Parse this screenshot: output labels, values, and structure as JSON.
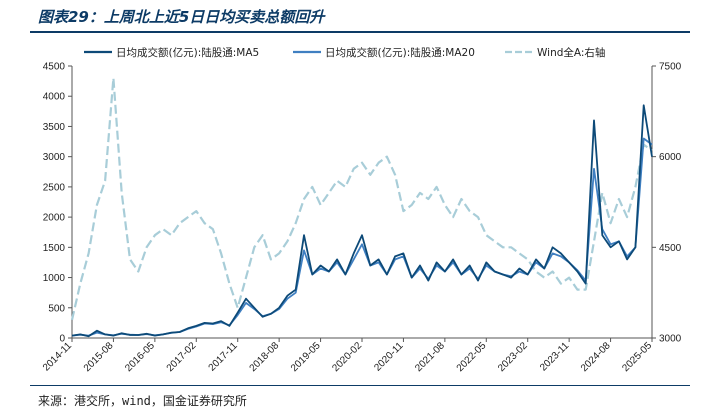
{
  "title": "图表29：上周北上近5日日均买卖总额回升",
  "source": "来源：港交所，wind，国金证券研究所",
  "chart_data": {
    "type": "line",
    "x_labels": [
      "2014-11",
      "2015-08",
      "2016-05",
      "2017-02",
      "2017-11",
      "2018-08",
      "2019-05",
      "2020-02",
      "2020-11",
      "2021-08",
      "2022-05",
      "2023-02",
      "2023-11",
      "2024-08",
      "2025-05"
    ],
    "y_left": {
      "min": 0,
      "max": 4500,
      "ticks": [
        0,
        500,
        1000,
        1500,
        2000,
        2500,
        3000,
        3500,
        4000,
        4500
      ]
    },
    "y_right": {
      "min": 3000,
      "max": 7500,
      "ticks": [
        3000,
        4500,
        6000,
        7500
      ]
    },
    "grid": false,
    "legend_position": "top",
    "series": [
      {
        "name": "日均成交额(亿元):陆股通:MA5",
        "axis": "left",
        "color": "#0d4a78",
        "style": "solid",
        "x": [
          0,
          2,
          4,
          6,
          8,
          10,
          12,
          14,
          16,
          18,
          20,
          22,
          24,
          26,
          28,
          30,
          32,
          34,
          36,
          38,
          40,
          42,
          44,
          46,
          48,
          50,
          52,
          54,
          56,
          58,
          60,
          62,
          64,
          66,
          68,
          70,
          72,
          74,
          76,
          78,
          80,
          82,
          84,
          86,
          88,
          90,
          92,
          94,
          96,
          98,
          100,
          102,
          104,
          106,
          108,
          110,
          112,
          114,
          116,
          118,
          120,
          122,
          124,
          126,
          128,
          130,
          132,
          134,
          136,
          138,
          140
        ],
        "values": [
          40,
          60,
          30,
          120,
          60,
          40,
          80,
          50,
          50,
          70,
          40,
          60,
          90,
          100,
          160,
          200,
          250,
          240,
          280,
          200,
          420,
          650,
          500,
          350,
          400,
          500,
          700,
          800,
          1700,
          1050,
          1200,
          1100,
          1300,
          1050,
          1400,
          1700,
          1200,
          1300,
          1050,
          1350,
          1400,
          1000,
          1200,
          950,
          1250,
          1100,
          1300,
          1050,
          1200,
          950,
          1250,
          1100,
          1050,
          1000,
          1150,
          1050,
          1300,
          1150,
          1500,
          1400,
          1250,
          1100,
          900,
          3600,
          1700,
          1500,
          1600,
          1300,
          1500,
          3850,
          3000
        ]
      },
      {
        "name": "日均成交额(亿元):陆股通:MA20",
        "axis": "left",
        "color": "#3f7fc1",
        "style": "solid",
        "x": [
          0,
          2,
          4,
          6,
          8,
          10,
          12,
          14,
          16,
          18,
          20,
          22,
          24,
          26,
          28,
          30,
          32,
          34,
          36,
          38,
          40,
          42,
          44,
          46,
          48,
          50,
          52,
          54,
          56,
          58,
          60,
          62,
          64,
          66,
          68,
          70,
          72,
          74,
          76,
          78,
          80,
          82,
          84,
          86,
          88,
          90,
          92,
          94,
          96,
          98,
          100,
          102,
          104,
          106,
          108,
          110,
          112,
          114,
          116,
          118,
          120,
          122,
          124,
          126,
          128,
          130,
          132,
          134,
          136,
          138,
          140
        ],
        "values": [
          40,
          55,
          40,
          90,
          60,
          45,
          70,
          55,
          50,
          65,
          45,
          60,
          85,
          100,
          150,
          190,
          240,
          230,
          260,
          210,
          380,
          580,
          480,
          360,
          400,
          480,
          650,
          750,
          1450,
          1050,
          1150,
          1100,
          1250,
          1050,
          1300,
          1550,
          1200,
          1250,
          1050,
          1300,
          1350,
          1000,
          1150,
          980,
          1200,
          1100,
          1250,
          1050,
          1150,
          980,
          1200,
          1100,
          1050,
          1020,
          1100,
          1050,
          1250,
          1150,
          1400,
          1350,
          1250,
          1120,
          950,
          2800,
          1800,
          1550,
          1600,
          1350,
          1500,
          3300,
          3200
        ]
      },
      {
        "name": "Wind全A:右轴",
        "axis": "right",
        "color": "#a8cdd8",
        "style": "dashed",
        "x": [
          0,
          2,
          4,
          6,
          8,
          10,
          12,
          14,
          16,
          18,
          20,
          22,
          24,
          26,
          28,
          30,
          32,
          34,
          36,
          38,
          40,
          42,
          44,
          46,
          48,
          50,
          52,
          54,
          56,
          58,
          60,
          62,
          64,
          66,
          68,
          70,
          72,
          74,
          76,
          78,
          80,
          82,
          84,
          86,
          88,
          90,
          92,
          94,
          96,
          98,
          100,
          102,
          104,
          106,
          108,
          110,
          112,
          114,
          116,
          118,
          120,
          122,
          124,
          126,
          128,
          130,
          132,
          134,
          136,
          138,
          140
        ],
        "values": [
          3300,
          3900,
          4400,
          5200,
          5600,
          7300,
          5400,
          4300,
          4100,
          4500,
          4700,
          4800,
          4700,
          4900,
          5000,
          5100,
          4900,
          4800,
          4400,
          3900,
          3500,
          4000,
          4500,
          4700,
          4300,
          4400,
          4600,
          4900,
          5300,
          5500,
          5200,
          5400,
          5600,
          5500,
          5800,
          5900,
          5700,
          5900,
          6000,
          5700,
          5100,
          5200,
          5400,
          5300,
          5500,
          5200,
          5000,
          5300,
          5100,
          5000,
          4700,
          4600,
          4500,
          4500,
          4400,
          4300,
          4100,
          4000,
          4100,
          3900,
          4000,
          3800,
          3800,
          4600,
          5400,
          4900,
          5300,
          5000,
          5500,
          6200,
          6100
        ]
      }
    ]
  }
}
